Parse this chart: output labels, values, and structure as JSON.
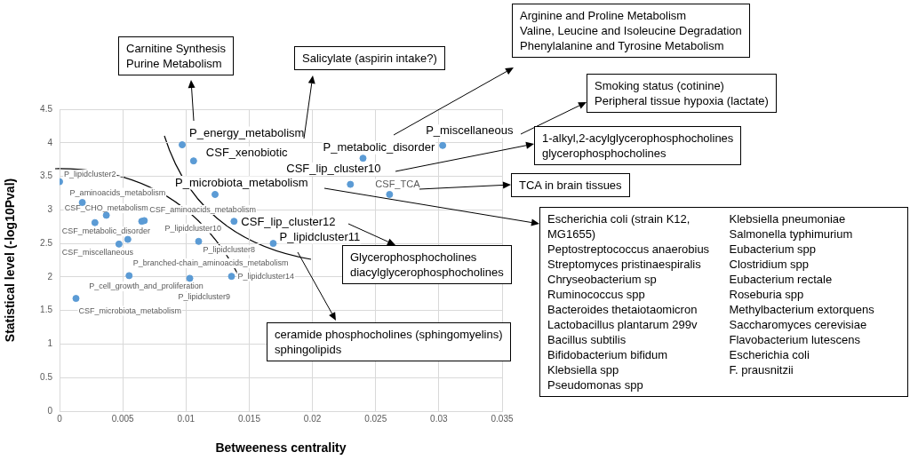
{
  "chart_data": {
    "type": "scatter",
    "xlabel": "Betweeness centrality",
    "ylabel": "Statistical level (-log10Pval)",
    "x": [
      0,
      0.0018,
      0.0037,
      0.0028,
      0.0065,
      0.0067,
      0.0054,
      0.0047,
      0.011,
      0.0055,
      0.0103,
      0.0136,
      0.0013,
      0.0097,
      0.0106,
      0.0123,
      0.0138,
      0.0169,
      0.024,
      0.023,
      0.0261,
      0.0303
    ],
    "values": [
      3.42,
      3.11,
      2.92,
      2.81,
      2.83,
      2.84,
      2.56,
      2.49,
      2.53,
      2.02,
      1.98,
      2.01,
      1.68,
      3.97,
      3.73,
      3.23,
      2.83,
      2.5,
      3.77,
      3.38,
      3.23,
      3.96
    ],
    "color": "#5b9bd5",
    "marker": "circle",
    "xlim": [
      0,
      0.035
    ],
    "xticks": [
      0,
      0.005,
      0.01,
      0.015,
      0.02,
      0.025,
      0.03,
      0.035
    ],
    "ylim": [
      0,
      4.5
    ],
    "yticks": [
      0,
      0.5,
      1,
      1.5,
      2,
      2.5,
      3,
      3.5,
      4,
      4.5
    ],
    "grid": true,
    "legend": false,
    "annotations": [
      {
        "text": "P_lipidcluster2",
        "x": 0,
        "y": 3.42
      },
      {
        "text": "P_aminoacids_metabolism",
        "x": 0.0018,
        "y": 3.11
      },
      {
        "text": "CSF_CHO_metabolism",
        "x": 0.0037,
        "y": 2.92
      },
      {
        "text": "CSF_metabolic_disorder",
        "x": 0.0028,
        "y": 2.81
      },
      {
        "text": "P_lipidcluster10",
        "x": 0.0065,
        "y": 2.83
      },
      {
        "text": "CSF_aminoacids_metabolism",
        "x": 0.0067,
        "y": 2.84
      },
      {
        "text": "P_branched-chain_aminoacids_metabolism",
        "x": 0.0054,
        "y": 2.56
      },
      {
        "text": "CSF_miscellaneous",
        "x": 0.0047,
        "y": 2.49
      },
      {
        "text": "P_lipidcluster8",
        "x": 0.011,
        "y": 2.53
      },
      {
        "text": "P_cell_growth_and_proliferation",
        "x": 0.0055,
        "y": 2.02
      },
      {
        "text": "P_lipidcluster9",
        "x": 0.0103,
        "y": 1.98
      },
      {
        "text": "P_lipidcluster14",
        "x": 0.0136,
        "y": 2.01
      },
      {
        "text": "CSF_microbiota_metabolism",
        "x": 0.0013,
        "y": 1.68
      },
      {
        "text": "P_energy_metabolism",
        "x": 0.0097,
        "y": 3.97
      },
      {
        "text": "CSF_xenobiotic",
        "x": 0.0106,
        "y": 3.73
      },
      {
        "text": "P_microbiota_metabolism",
        "x": 0.0123,
        "y": 3.23
      },
      {
        "text": "CSF_lip_cluster12",
        "x": 0.0138,
        "y": 2.83
      },
      {
        "text": "P_lipidcluster11",
        "x": 0.0169,
        "y": 2.5
      },
      {
        "text": "P_metabolic_disorder",
        "x": 0.024,
        "y": 3.77
      },
      {
        "text": "CSF_lip_cluster10",
        "x": 0.023,
        "y": 3.38
      },
      {
        "text": "CSF_TCA",
        "x": 0.0261,
        "y": 3.23
      },
      {
        "text": "P_miscellaneous",
        "x": 0.0303,
        "y": 3.96
      },
      "Carnitine Synthesis\nPurine Metabolism",
      "Salicylate (aspirin intake?)",
      "Arginine and Proline Metabolism\nValine, Leucine and Isoleucine Degradation\nPhenylalanine and Tyrosine Metabolism",
      "Smoking status (cotinine)\nPeripheral tissue hypoxia (lactate)",
      "1-alkyl,2-acylglycerophosphocholines\nglycerophosphocholines",
      "TCA in brain tissues",
      "Escherichia coli (strain K12, MG1655)\nPeptostreptococcus anaerobius\nStreptomyces pristinaespiralis\nChryseobacterium sp\nRuminococcus spp\nBacteroides thetaiotaomicron\nLactobacillus plantarum 299v\nBacillus subtilis\nBifidobacterium bifidum\nKlebsiella spp\nPseudomonas spp\nKlebsiella pneumoniae\nSalmonella typhimurium\nEubacterium spp\nClostridium spp\nEubacterium rectale\nRoseburia spp\nMethylbacterium extorquens\nSaccharomyces cerevisiae\nFlavobacterium lutescens\nEscherichia coli\nF. prausnitzii",
      "Glycerophosphocholines\ndiacylglycerophosphocholines",
      "ceramide phosphocholines (sphingomyelins)\nsphingolipids"
    ]
  }
}
